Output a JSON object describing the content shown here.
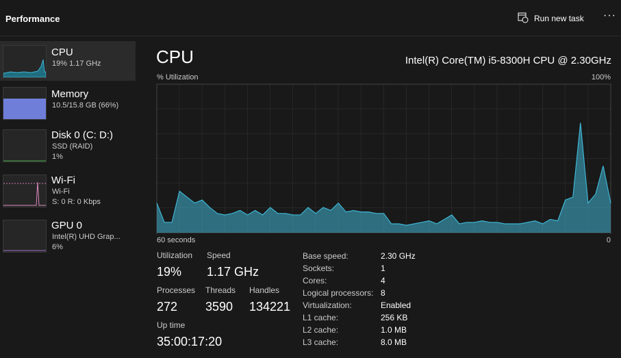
{
  "header": {
    "title": "Performance",
    "action": "Run new task"
  },
  "sidebar": [
    {
      "name": "CPU",
      "line1": "19%  1.17 GHz"
    },
    {
      "name": "Memory",
      "line1": "10.5/15.8 GB (66%)"
    },
    {
      "name": "Disk 0 (C: D:)",
      "line1": "SSD (RAID)",
      "line2": "1%"
    },
    {
      "name": "Wi-Fi",
      "line1": "Wi-Fi",
      "line2": "S: 0 R: 0 Kbps"
    },
    {
      "name": "GPU 0",
      "line1": "Intel(R) UHD Grap...",
      "line2": "6%"
    }
  ],
  "main": {
    "title": "CPU",
    "model": "Intel(R) Core(TM) i5-8300H CPU @ 2.30GHz"
  },
  "cpu_graph": {
    "type": "area",
    "ylabel": "% Utilization",
    "color": "#3fb5d3",
    "xlim": [
      60,
      0
    ],
    "xticks": [
      {
        "value": 60,
        "label": "60 seconds"
      },
      {
        "value": 0,
        "label": "0"
      }
    ],
    "ylim": [
      0,
      100
    ],
    "yticks": [
      {
        "value": 100,
        "label": "100%"
      }
    ],
    "x": [
      60,
      59,
      58,
      57,
      56,
      55,
      54,
      53,
      52,
      51,
      50,
      49,
      48,
      47,
      46,
      45,
      44,
      43,
      42,
      41,
      40,
      39,
      38,
      37,
      36,
      35,
      34,
      33,
      32,
      31,
      30,
      29,
      28,
      27,
      26,
      25,
      24,
      23,
      22,
      21,
      20,
      19,
      18,
      17,
      16,
      15,
      14,
      13,
      12,
      11,
      10,
      9,
      8,
      7,
      6,
      5,
      4,
      3,
      2,
      1,
      0
    ],
    "values": [
      20,
      7,
      7,
      28,
      24,
      20,
      22,
      17,
      13,
      12,
      13,
      15,
      12,
      15,
      12,
      17,
      13,
      13,
      12,
      12,
      17,
      13,
      17,
      15,
      20,
      14,
      15,
      14,
      14,
      13,
      13,
      6,
      6,
      5,
      6,
      7,
      8,
      6,
      9,
      12,
      6,
      7,
      7,
      8,
      7,
      7,
      6,
      6,
      6,
      7,
      8,
      6,
      9,
      8,
      22,
      24,
      74,
      20,
      26,
      45,
      20
    ]
  },
  "stats": [
    {
      "label": "Utilization",
      "value": "19%"
    },
    {
      "label": "Speed",
      "value": "1.17 GHz"
    },
    {
      "label": "Processes",
      "value": "272"
    },
    {
      "label": "Threads",
      "value": "3590"
    },
    {
      "label": "Handles",
      "value": "134221"
    },
    {
      "label": "Up time",
      "value": "35:00:17:20"
    }
  ],
  "details": [
    [
      "Base speed:",
      "2.30 GHz"
    ],
    [
      "Sockets:",
      "1"
    ],
    [
      "Cores:",
      "4"
    ],
    [
      "Logical processors:",
      "8"
    ],
    [
      "Virtualization:",
      "Enabled"
    ],
    [
      "L1 cache:",
      "256 KB"
    ],
    [
      "L2 cache:",
      "1.0 MB"
    ],
    [
      "L3 cache:",
      "8.0 MB"
    ]
  ]
}
